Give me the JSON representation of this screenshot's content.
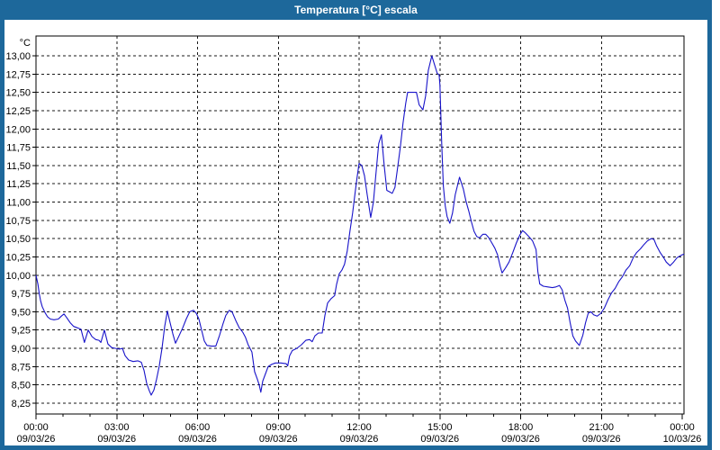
{
  "window": {
    "title": "Temperatura [°C] escala"
  },
  "colors": {
    "titlebar_bg": "#1d689b",
    "window_border": "#1d689b",
    "plot_bg": "#ffffff",
    "grid": "#1a1a1a",
    "axis": "#000000",
    "text": "#000000",
    "line": "#1813c9"
  },
  "chart_data": {
    "type": "line",
    "title": "Temperatura [°C] escala",
    "y_unit_label": "°C",
    "xlabel": "",
    "ylabel": "°C",
    "ylim": [
      8.25,
      13.0
    ],
    "y_tick_step": 0.25,
    "y_tick_labels": [
      "8,25",
      "8,50",
      "8,75",
      "9,00",
      "9,25",
      "9,50",
      "9,75",
      "10,00",
      "10,25",
      "10,50",
      "10,75",
      "11,00",
      "11,25",
      "11,50",
      "11,75",
      "12,00",
      "12,25",
      "12,50",
      "12,75",
      "13,00"
    ],
    "xlim_hours": [
      0,
      24.07
    ],
    "x_major_tick_hours": 3,
    "x_minor_tick_hours": 1,
    "x_ticks": [
      {
        "hour": 0,
        "time": "00:00",
        "date": "09/03/26"
      },
      {
        "hour": 3,
        "time": "03:00",
        "date": "09/03/26"
      },
      {
        "hour": 6,
        "time": "06:00",
        "date": "09/03/26"
      },
      {
        "hour": 9,
        "time": "09:00",
        "date": "09/03/26"
      },
      {
        "hour": 12,
        "time": "12:00",
        "date": "09/03/26"
      },
      {
        "hour": 15,
        "time": "15:00",
        "date": "09/03/26"
      },
      {
        "hour": 18,
        "time": "18:00",
        "date": "09/03/26"
      },
      {
        "hour": 21,
        "time": "21:00",
        "date": "09/03/26"
      },
      {
        "hour": 24,
        "time": "00:00",
        "date": "10/03/26"
      }
    ],
    "grid": "dashed",
    "legend": "none",
    "series": [
      {
        "name": "Temperatura",
        "color": "#1813c9",
        "points": [
          [
            0,
            10.0
          ],
          [
            0.07,
            9.88
          ],
          [
            0.12,
            9.75
          ],
          [
            0.17,
            9.65
          ],
          [
            0.23,
            9.57
          ],
          [
            0.33,
            9.49
          ],
          [
            0.43,
            9.43
          ],
          [
            0.53,
            9.4
          ],
          [
            0.67,
            9.39
          ],
          [
            0.83,
            9.4
          ],
          [
            0.94,
            9.44
          ],
          [
            1.04,
            9.47
          ],
          [
            1.14,
            9.42
          ],
          [
            1.27,
            9.35
          ],
          [
            1.4,
            9.3
          ],
          [
            1.54,
            9.28
          ],
          [
            1.67,
            9.26
          ],
          [
            1.8,
            9.08
          ],
          [
            1.94,
            9.25
          ],
          [
            2.08,
            9.16
          ],
          [
            2.22,
            9.12
          ],
          [
            2.34,
            9.11
          ],
          [
            2.41,
            9.08
          ],
          [
            2.54,
            9.25
          ],
          [
            2.67,
            9.06
          ],
          [
            2.81,
            9.01
          ],
          [
            2.94,
            9.0
          ],
          [
            3.11,
            8.99
          ],
          [
            3.21,
            9.0
          ],
          [
            3.31,
            8.9
          ],
          [
            3.44,
            8.84
          ],
          [
            3.61,
            8.82
          ],
          [
            3.78,
            8.83
          ],
          [
            3.91,
            8.81
          ],
          [
            4.01,
            8.7
          ],
          [
            4.11,
            8.52
          ],
          [
            4.21,
            8.42
          ],
          [
            4.28,
            8.36
          ],
          [
            4.38,
            8.43
          ],
          [
            4.48,
            8.58
          ],
          [
            4.58,
            8.76
          ],
          [
            4.68,
            9.0
          ],
          [
            4.78,
            9.3
          ],
          [
            4.88,
            9.51
          ],
          [
            4.98,
            9.35
          ],
          [
            5.08,
            9.2
          ],
          [
            5.18,
            9.07
          ],
          [
            5.31,
            9.17
          ],
          [
            5.45,
            9.28
          ],
          [
            5.58,
            9.4
          ],
          [
            5.71,
            9.5
          ],
          [
            5.85,
            9.52
          ],
          [
            5.95,
            9.48
          ],
          [
            6.05,
            9.4
          ],
          [
            6.15,
            9.25
          ],
          [
            6.25,
            9.1
          ],
          [
            6.35,
            9.04
          ],
          [
            6.51,
            9.03
          ],
          [
            6.68,
            9.03
          ],
          [
            6.82,
            9.18
          ],
          [
            6.95,
            9.34
          ],
          [
            7.05,
            9.45
          ],
          [
            7.18,
            9.52
          ],
          [
            7.28,
            9.5
          ],
          [
            7.42,
            9.38
          ],
          [
            7.55,
            9.28
          ],
          [
            7.68,
            9.22
          ],
          [
            7.78,
            9.15
          ],
          [
            7.88,
            9.05
          ],
          [
            8.02,
            8.95
          ],
          [
            8.12,
            8.68
          ],
          [
            8.22,
            8.58
          ],
          [
            8.29,
            8.5
          ],
          [
            8.35,
            8.4
          ],
          [
            8.42,
            8.55
          ],
          [
            8.52,
            8.65
          ],
          [
            8.62,
            8.75
          ],
          [
            8.75,
            8.78
          ],
          [
            8.89,
            8.8
          ],
          [
            9.09,
            8.8
          ],
          [
            9.29,
            8.79
          ],
          [
            9.35,
            8.76
          ],
          [
            9.42,
            8.9
          ],
          [
            9.52,
            8.97
          ],
          [
            9.69,
            9.0
          ],
          [
            9.86,
            9.05
          ],
          [
            10.02,
            9.11
          ],
          [
            10.16,
            9.12
          ],
          [
            10.26,
            9.09
          ],
          [
            10.36,
            9.17
          ],
          [
            10.49,
            9.21
          ],
          [
            10.63,
            9.21
          ],
          [
            10.73,
            9.45
          ],
          [
            10.83,
            9.62
          ],
          [
            10.96,
            9.68
          ],
          [
            11.09,
            9.72
          ],
          [
            11.16,
            9.87
          ],
          [
            11.26,
            10.02
          ],
          [
            11.36,
            10.07
          ],
          [
            11.46,
            10.15
          ],
          [
            11.56,
            10.33
          ],
          [
            11.66,
            10.6
          ],
          [
            11.76,
            10.85
          ],
          [
            11.86,
            11.15
          ],
          [
            11.93,
            11.35
          ],
          [
            12.0,
            11.53
          ],
          [
            12.1,
            11.5
          ],
          [
            12.2,
            11.36
          ],
          [
            12.3,
            11.1
          ],
          [
            12.43,
            10.79
          ],
          [
            12.53,
            11.0
          ],
          [
            12.63,
            11.4
          ],
          [
            12.73,
            11.8
          ],
          [
            12.83,
            11.92
          ],
          [
            12.93,
            11.51
          ],
          [
            13.03,
            11.16
          ],
          [
            13.13,
            11.14
          ],
          [
            13.23,
            11.12
          ],
          [
            13.33,
            11.2
          ],
          [
            13.43,
            11.47
          ],
          [
            13.53,
            11.75
          ],
          [
            13.63,
            12.08
          ],
          [
            13.73,
            12.35
          ],
          [
            13.8,
            12.5
          ],
          [
            14.13,
            12.5
          ],
          [
            14.23,
            12.33
          ],
          [
            14.37,
            12.26
          ],
          [
            14.47,
            12.45
          ],
          [
            14.57,
            12.8
          ],
          [
            14.7,
            13.0
          ],
          [
            14.8,
            12.88
          ],
          [
            14.9,
            12.76
          ],
          [
            14.97,
            12.74
          ],
          [
            15.0,
            12.6
          ],
          [
            15.07,
            11.8
          ],
          [
            15.13,
            11.22
          ],
          [
            15.2,
            10.95
          ],
          [
            15.27,
            10.8
          ],
          [
            15.37,
            10.71
          ],
          [
            15.47,
            10.85
          ],
          [
            15.57,
            11.1
          ],
          [
            15.67,
            11.25
          ],
          [
            15.73,
            11.34
          ],
          [
            15.87,
            11.18
          ],
          [
            15.97,
            11.01
          ],
          [
            16.07,
            10.88
          ],
          [
            16.17,
            10.73
          ],
          [
            16.27,
            10.6
          ],
          [
            16.37,
            10.53
          ],
          [
            16.47,
            10.51
          ],
          [
            16.6,
            10.56
          ],
          [
            16.7,
            10.56
          ],
          [
            16.8,
            10.52
          ],
          [
            16.9,
            10.46
          ],
          [
            17.04,
            10.37
          ],
          [
            17.14,
            10.28
          ],
          [
            17.24,
            10.12
          ],
          [
            17.31,
            10.03
          ],
          [
            17.44,
            10.1
          ],
          [
            17.57,
            10.18
          ],
          [
            17.71,
            10.31
          ],
          [
            17.84,
            10.44
          ],
          [
            17.97,
            10.55
          ],
          [
            18.07,
            10.61
          ],
          [
            18.17,
            10.58
          ],
          [
            18.3,
            10.53
          ],
          [
            18.44,
            10.47
          ],
          [
            18.57,
            10.35
          ],
          [
            18.64,
            10.05
          ],
          [
            18.71,
            9.88
          ],
          [
            18.84,
            9.85
          ],
          [
            19.01,
            9.84
          ],
          [
            19.18,
            9.83
          ],
          [
            19.31,
            9.84
          ],
          [
            19.44,
            9.86
          ],
          [
            19.54,
            9.8
          ],
          [
            19.64,
            9.66
          ],
          [
            19.74,
            9.55
          ],
          [
            19.84,
            9.35
          ],
          [
            19.94,
            9.17
          ],
          [
            20.04,
            9.1
          ],
          [
            20.18,
            9.04
          ],
          [
            20.31,
            9.18
          ],
          [
            20.41,
            9.35
          ],
          [
            20.51,
            9.48
          ],
          [
            20.61,
            9.5
          ],
          [
            20.71,
            9.46
          ],
          [
            20.84,
            9.44
          ],
          [
            20.98,
            9.48
          ],
          [
            21.11,
            9.55
          ],
          [
            21.24,
            9.66
          ],
          [
            21.38,
            9.76
          ],
          [
            21.51,
            9.82
          ],
          [
            21.64,
            9.91
          ],
          [
            21.78,
            9.98
          ],
          [
            21.91,
            10.07
          ],
          [
            22.05,
            10.13
          ],
          [
            22.18,
            10.24
          ],
          [
            22.31,
            10.31
          ],
          [
            22.45,
            10.36
          ],
          [
            22.58,
            10.42
          ],
          [
            22.71,
            10.47
          ],
          [
            22.85,
            10.5
          ],
          [
            22.95,
            10.49
          ],
          [
            23.05,
            10.4
          ],
          [
            23.18,
            10.31
          ],
          [
            23.31,
            10.24
          ],
          [
            23.41,
            10.18
          ],
          [
            23.55,
            10.13
          ],
          [
            23.68,
            10.18
          ],
          [
            23.81,
            10.24
          ],
          [
            23.95,
            10.27
          ],
          [
            24.07,
            10.29
          ]
        ]
      }
    ]
  }
}
